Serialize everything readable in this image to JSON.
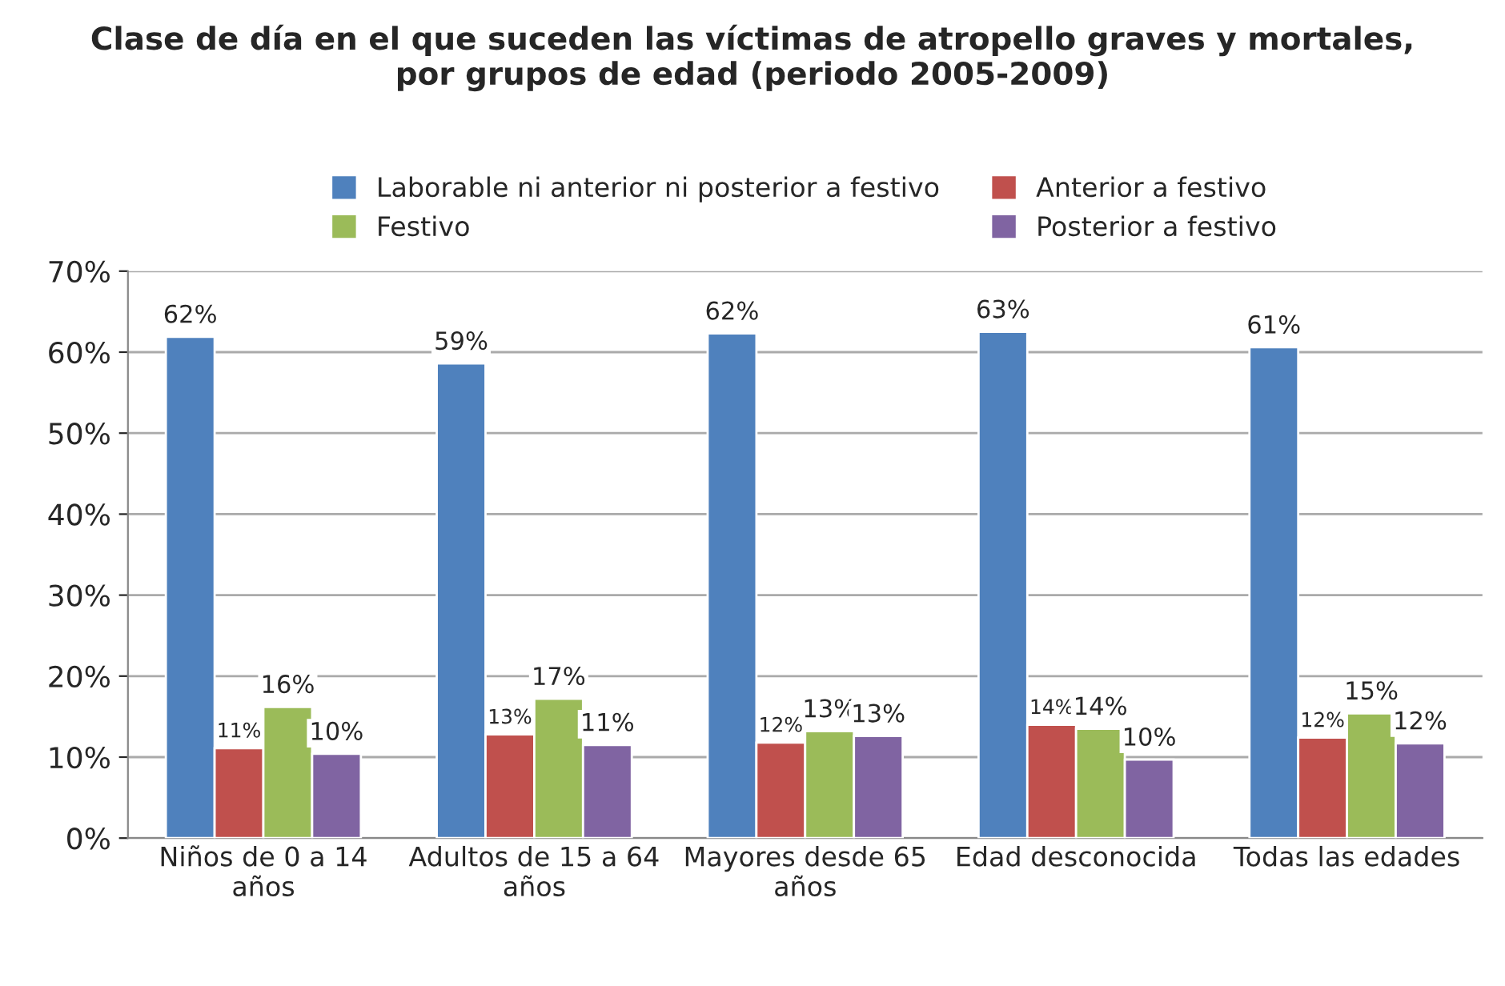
{
  "chart_data": {
    "type": "bar",
    "title": "Clase de día en el que suceden las víctimas de atropello graves y mortales,\npor grupos de edad (periodo 2005-2009)",
    "categories": [
      "Niños de 0 a 14\naños",
      "Adultos de 15 a 64\naños",
      "Mayores desde 65\naños",
      "Edad desconocida",
      "Todas las edades"
    ],
    "series": [
      {
        "name": "Laborable ni anterior ni posterior a festivo",
        "color": "#4f81bd",
        "values": [
          61.9,
          58.6,
          62.3,
          62.5,
          60.6
        ],
        "value_labels": [
          "62%",
          "59%",
          "62%",
          "63%",
          "61%"
        ]
      },
      {
        "name": "Anterior a festivo",
        "color": "#c0504d",
        "values": [
          11.1,
          12.8,
          11.8,
          14.0,
          12.4
        ],
        "value_labels": [
          "11%",
          "13%",
          "12%",
          "14%",
          "12%"
        ]
      },
      {
        "name": "Festivo",
        "color": "#9bbb59",
        "values": [
          16.2,
          17.2,
          13.2,
          13.5,
          15.4
        ],
        "value_labels": [
          "16%",
          "17%",
          "13%",
          "14%",
          "15%"
        ]
      },
      {
        "name": "Posterior a festivo",
        "color": "#8064a2",
        "values": [
          10.4,
          11.5,
          12.6,
          9.7,
          11.7
        ],
        "value_labels": [
          "10%",
          "11%",
          "13%",
          "10%",
          "12%"
        ]
      }
    ],
    "ylim": [
      0,
      70
    ],
    "yticks": [
      {
        "value": 0,
        "label": "0%"
      },
      {
        "value": 10,
        "label": "10%"
      },
      {
        "value": 20,
        "label": "20%"
      },
      {
        "value": 30,
        "label": "30%"
      },
      {
        "value": 40,
        "label": "40%"
      },
      {
        "value": 50,
        "label": "50%"
      },
      {
        "value": 60,
        "label": "60%"
      },
      {
        "value": 70,
        "label": "70%"
      }
    ],
    "grid": "y",
    "legend": "top"
  }
}
